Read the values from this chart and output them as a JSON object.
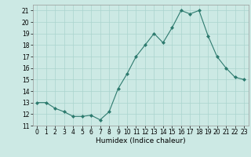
{
  "x": [
    0,
    1,
    2,
    3,
    4,
    5,
    6,
    7,
    8,
    9,
    10,
    11,
    12,
    13,
    14,
    15,
    16,
    17,
    18,
    19,
    20,
    21,
    22,
    23
  ],
  "y": [
    13,
    13,
    12.5,
    12.2,
    11.8,
    11.8,
    11.9,
    11.5,
    12.2,
    14.2,
    15.5,
    17.0,
    18.0,
    19.0,
    18.2,
    19.5,
    21.0,
    20.7,
    21.0,
    18.8,
    17.0,
    16.0,
    15.2,
    15.0
  ],
  "line_color": "#2d7a6e",
  "marker": "D",
  "marker_size": 2,
  "bg_color": "#cce9e4",
  "grid_color": "#aad4ce",
  "xlabel": "Humidex (Indice chaleur)",
  "xlim": [
    -0.5,
    23.5
  ],
  "ylim": [
    11,
    21.5
  ],
  "yticks": [
    11,
    12,
    13,
    14,
    15,
    16,
    17,
    18,
    19,
    20,
    21
  ],
  "xticks": [
    0,
    1,
    2,
    3,
    4,
    5,
    6,
    7,
    8,
    9,
    10,
    11,
    12,
    13,
    14,
    15,
    16,
    17,
    18,
    19,
    20,
    21,
    22,
    23
  ],
  "label_fontsize": 6.5,
  "tick_fontsize": 5.5
}
